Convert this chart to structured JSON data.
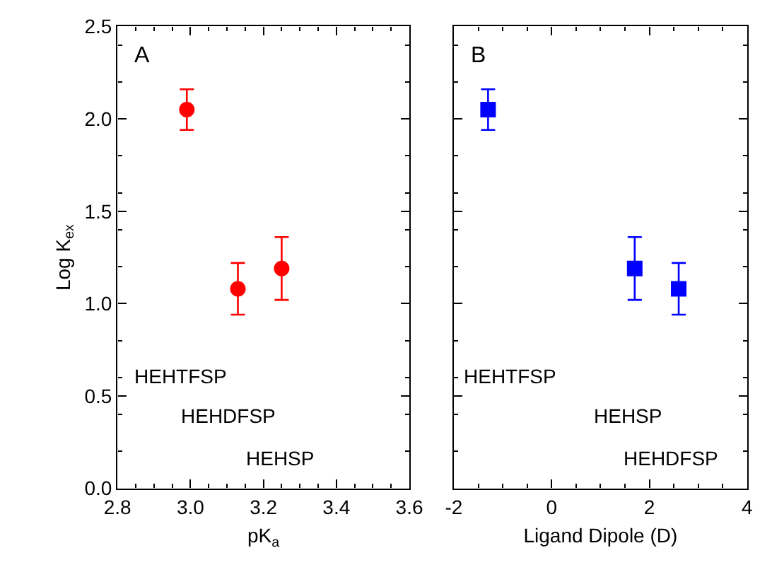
{
  "chart_data": [
    {
      "type": "scatter",
      "xlabel": "pK$_{a}$",
      "ylabel": "Log K$_{ex}$",
      "x": [
        2.99,
        3.13,
        3.25
      ],
      "series": [
        {
          "color": "#ff0000",
          "values": [
            2.05,
            1.08,
            1.19
          ],
          "errors": [
            0.11,
            0.14,
            0.17
          ]
        }
      ],
      "xlim": [
        2.8,
        3.6
      ],
      "xticks": [
        {
          "value": 2.8,
          "label": "2.8"
        },
        {
          "value": 3.0,
          "label": "3.0"
        },
        {
          "value": 3.2,
          "label": "3.2"
        },
        {
          "value": 3.4,
          "label": "3.4"
        },
        {
          "value": 3.6,
          "label": "3.6"
        }
      ],
      "ylim": [
        0,
        2.5
      ],
      "yticks": [
        {
          "value": 0,
          "label": "0.0"
        },
        {
          "value": 0.5,
          "label": "0.5"
        },
        {
          "value": 1.0,
          "label": "1.0"
        },
        {
          "value": 1.5,
          "label": "1.5"
        },
        {
          "value": 2.0,
          "label": "2.0"
        },
        {
          "value": 2.5,
          "label": "2.5"
        }
      ],
      "marker": "circle",
      "annotations": [
        "A",
        "HEHTFSP",
        "HEHDFSP",
        "HEHSP"
      ]
    },
    {
      "type": "scatter",
      "xlabel": "Ligand Dipole (D)",
      "x": [
        -1.3,
        1.7,
        2.6
      ],
      "series": [
        {
          "color": "#0000ff",
          "values": [
            2.05,
            1.19,
            1.08
          ],
          "errors": [
            0.11,
            0.17,
            0.14
          ]
        }
      ],
      "xlim": [
        -2,
        4
      ],
      "xticks": [
        -2,
        0,
        2,
        4
      ],
      "ylim": [
        0,
        2.5
      ],
      "yticks": [
        0,
        0.5,
        1,
        1.5,
        2,
        2.5
      ],
      "tick_labels": "x",
      "marker": "square",
      "annotations": [
        "B",
        "HEHTFSP",
        "HEHSP",
        "HEHDFSP"
      ]
    }
  ]
}
